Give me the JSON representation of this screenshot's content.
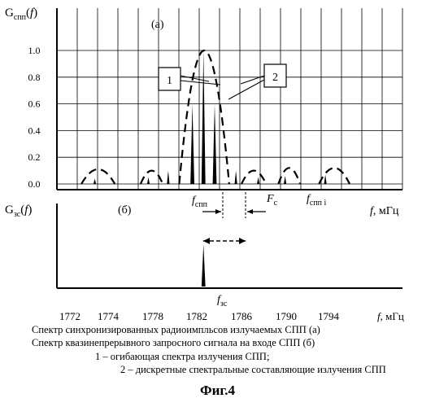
{
  "chart_data": [
    {
      "panel_label": "(а)",
      "ylabel_base": "G",
      "ylabel_sub": "спп",
      "ylabel_arg": "f",
      "ylim": [
        0,
        1.0
      ],
      "yticks": [
        "0.0",
        "0.2",
        "0.4",
        "0.6",
        "0.8",
        "1.0"
      ],
      "grid": true,
      "callouts": [
        "1",
        "2"
      ],
      "markers": [
        {
          "base": "f",
          "sub": "спп",
          "italic": true
        },
        {
          "base": "F",
          "sub": "c",
          "italic": true
        },
        {
          "base": "f",
          "sub": "спп i",
          "italic": true
        }
      ],
      "xaxis_label": "f",
      "xaxis_unit": ", мГц",
      "series": [
        {
          "type": "line",
          "style": "dashed",
          "lobes": [
            {
              "x": [
                1772.6,
                1774.6
              ],
              "peak": 0.11
            },
            {
              "x": [
                1776.9,
                1778.9
              ],
              "peak": 0.1
            },
            {
              "x": [
                1780.4,
                1784.9
              ],
              "peak": 1.0
            },
            {
              "x": [
                1786.0,
                1788.2
              ],
              "peak": 0.1
            },
            {
              "x": [
                1789.3,
                1791.3
              ],
              "peak": 0.12
            },
            {
              "x": [
                1793.1,
                1796.0
              ],
              "peak": 0.12
            }
          ]
        },
        {
          "type": "bar",
          "x": [
            1773.3,
            1777.6,
            1779.4,
            1781.6,
            1782.6,
            1783.6,
            1785.5,
            1787.5,
            1789.9,
            1793.7
          ],
          "values": [
            0.04,
            0.05,
            0.1,
            0.6,
            1.0,
            0.6,
            0.1,
            0.05,
            0.06,
            0.07
          ]
        }
      ]
    },
    {
      "panel_label": "(б)",
      "ylabel_base": "G",
      "ylabel_sub": "зс",
      "ylabel_arg": "f",
      "series": [
        {
          "type": "bar",
          "x": [
            1782.6
          ],
          "values": [
            1.0
          ]
        }
      ],
      "marker": {
        "base": "f",
        "sub": "зс"
      },
      "xticks": [
        "1772",
        "1774",
        "1778",
        "1782",
        "1786",
        "1790",
        "1794"
      ],
      "xlabel_base": "f",
      "xlabel_unit": ", мГц"
    }
  ],
  "caption": [
    "Спектр синхронизированных радиоимпльсов излучаемых СПП (а)",
    "Спектр квазинепрерывного запросного сигнала на входе СПП (б)",
    "1 – огибающая спектра излучения СПП;",
    "2 – дискретные спектральные составляющие излучения СПП"
  ],
  "figure_title": "Фиг.4"
}
